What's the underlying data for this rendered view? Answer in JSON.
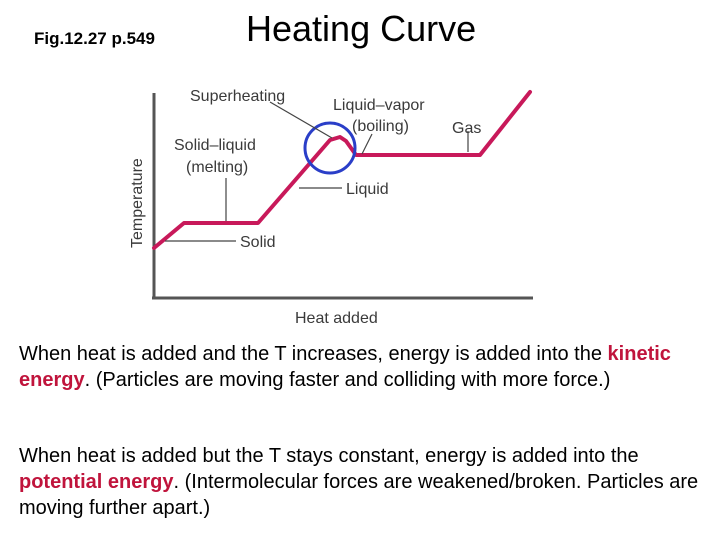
{
  "header": {
    "figure_ref": "Fig.12.27 p.549",
    "title": "Heating Curve"
  },
  "diagram": {
    "y_axis_label": "Temperature",
    "x_axis_label": "Heat added",
    "labels": {
      "superheating": "Superheating",
      "liquid_vapor_line1": "Liquid–vapor",
      "liquid_vapor_line2": "(boiling)",
      "gas": "Gas",
      "solid_liquid_line1": "Solid–liquid",
      "solid_liquid_line2": "(melting)",
      "liquid": "Liquid",
      "solid": "Solid"
    },
    "colors": {
      "curve": "#c8195a",
      "axes": "#555555",
      "highlight_circle": "#2a3ec8"
    }
  },
  "text": {
    "p1": {
      "before": "When heat is added and the T increases, energy is added into the ",
      "highlight": "kinetic energy",
      "after": ". (Particles are moving faster and colliding with more force.)"
    },
    "p2": {
      "before": "When heat is added but the T stays constant, energy is added into the ",
      "highlight": "potential energy",
      "after": ". (Intermolecular forces are weakened/broken. Particles are moving further apart.)"
    }
  }
}
